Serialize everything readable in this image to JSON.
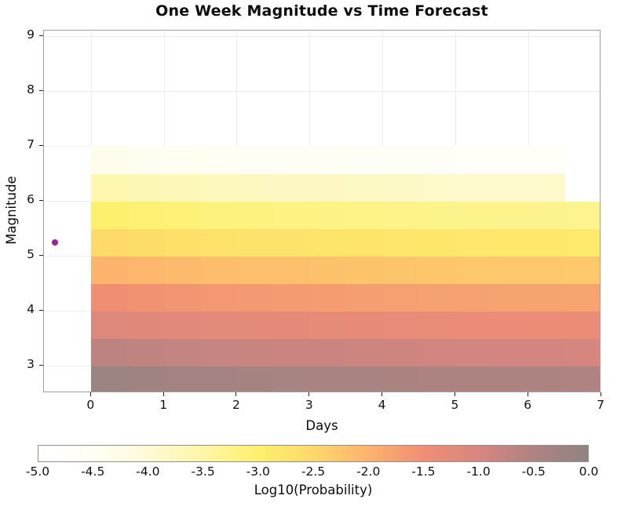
{
  "chart_data": {
    "type": "heatmap",
    "title": "One Week Magnitude vs Time Forecast",
    "xlabel": "Days",
    "ylabel": "Magnitude",
    "colorbar_label": "Log10(Probability)",
    "xlim": [
      -0.65,
      7.0
    ],
    "ylim": [
      2.5,
      9.1
    ],
    "grid": true,
    "x_tick_values": [
      0,
      1,
      2,
      3,
      4,
      5,
      6,
      7
    ],
    "x_tick_labels": [
      "0",
      "1",
      "2",
      "3",
      "4",
      "5",
      "6",
      "7"
    ],
    "y_tick_values": [
      3,
      4,
      5,
      6,
      7,
      8,
      9
    ],
    "y_tick_labels": [
      "3",
      "4",
      "5",
      "6",
      "7",
      "8",
      "9"
    ],
    "cell_width_days": 0.5,
    "cell_height_magnitude": 0.5,
    "day_centers": [
      0.25,
      0.75,
      1.25,
      1.75,
      2.25,
      2.75,
      3.25,
      3.75,
      4.25,
      4.75,
      5.25,
      5.75,
      6.25,
      6.75
    ],
    "mag_centers": [
      2.75,
      3.25,
      3.75,
      4.25,
      4.75,
      5.25,
      5.75,
      6.25,
      6.75
    ],
    "values_row_order": "bottom-to-top, aligned with mag_centers",
    "values_log10_probability": [
      [
        -0.2,
        -0.26,
        -0.3,
        -0.33,
        -0.36,
        -0.38,
        -0.4,
        -0.42,
        -0.44,
        -0.46,
        -0.47,
        -0.48,
        -0.49,
        -0.5
      ],
      [
        -0.65,
        -0.71,
        -0.75,
        -0.78,
        -0.81,
        -0.83,
        -0.85,
        -0.87,
        -0.89,
        -0.91,
        -0.92,
        -0.93,
        -0.94,
        -0.95
      ],
      [
        -1.1,
        -1.16,
        -1.2,
        -1.23,
        -1.26,
        -1.28,
        -1.3,
        -1.32,
        -1.34,
        -1.36,
        -1.37,
        -1.38,
        -1.39,
        -1.4
      ],
      [
        -1.5,
        -1.56,
        -1.6,
        -1.63,
        -1.66,
        -1.68,
        -1.7,
        -1.72,
        -1.74,
        -1.76,
        -1.77,
        -1.78,
        -1.79,
        -1.8
      ],
      [
        -2.0,
        -2.06,
        -2.1,
        -2.13,
        -2.16,
        -2.18,
        -2.2,
        -2.22,
        -2.24,
        -2.26,
        -2.27,
        -2.28,
        -2.29,
        -2.3
      ],
      [
        -2.55,
        -2.61,
        -2.65,
        -2.68,
        -2.71,
        -2.73,
        -2.75,
        -2.77,
        -2.79,
        -2.81,
        -2.82,
        -2.83,
        -2.84,
        -2.85
      ],
      [
        -3.0,
        -3.06,
        -3.1,
        -3.13,
        -3.16,
        -3.18,
        -3.2,
        -3.22,
        -3.24,
        -3.26,
        -3.27,
        -3.28,
        -3.29,
        -3.3
      ],
      [
        -3.6,
        -3.66,
        -3.7,
        -3.73,
        -3.76,
        -3.78,
        -3.8,
        -3.82,
        -3.84,
        -3.86,
        -3.87,
        -3.88,
        -3.89,
        -5.0
      ],
      [
        -4.35,
        -4.41,
        -4.45,
        -4.48,
        -4.51,
        -4.53,
        -4.55,
        -4.57,
        -4.59,
        -4.61,
        -4.62,
        -4.63,
        -4.64,
        -5.0
      ]
    ],
    "mainshock_marker": {
      "day": -0.5,
      "magnitude": 5.25,
      "color": "#9c1f9c"
    },
    "colorbar": {
      "range": [
        -5.0,
        0.0
      ],
      "tick_values": [
        -5.0,
        -4.5,
        -4.0,
        -3.5,
        -3.0,
        -2.5,
        -2.0,
        -1.5,
        -1.0,
        -0.5,
        0.0
      ],
      "tick_labels": [
        "-5.0",
        "-4.5",
        "-4.0",
        "-3.5",
        "-3.0",
        "-2.5",
        "-2.0",
        "-1.5",
        "-1.0",
        "-0.5",
        "0.0"
      ],
      "stops": [
        {
          "value": -5.0,
          "color": "#ffffff"
        },
        {
          "value": -4.5,
          "color": "#fffef4"
        },
        {
          "value": -4.0,
          "color": "#fdfad6"
        },
        {
          "value": -3.5,
          "color": "#fdf6a6"
        },
        {
          "value": -3.0,
          "color": "#fdf06d"
        },
        {
          "value": -2.5,
          "color": "#fdd869"
        },
        {
          "value": -2.0,
          "color": "#fcb36d"
        },
        {
          "value": -1.5,
          "color": "#f08e74"
        },
        {
          "value": -1.0,
          "color": "#d8867f"
        },
        {
          "value": -0.5,
          "color": "#ae8381"
        },
        {
          "value": 0.0,
          "color": "#8f8481"
        }
      ]
    }
  }
}
